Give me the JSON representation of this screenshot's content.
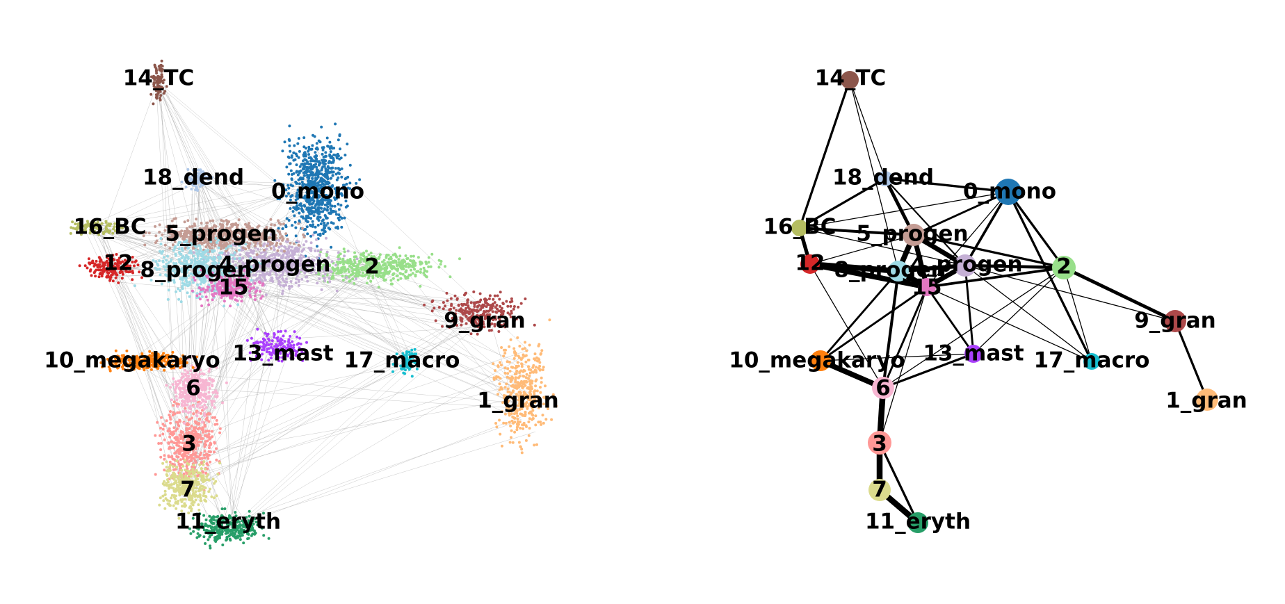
{
  "left_panel": {
    "title": "",
    "clusters": [
      {
        "id": "0_mono",
        "label": "0_mono",
        "color": "#1f77b4"
      },
      {
        "id": "1_gran",
        "label": "1_gran",
        "color": "#ffbb78"
      },
      {
        "id": "2",
        "label": "2",
        "color": "#98df8a"
      },
      {
        "id": "3",
        "label": "3",
        "color": "#ff9896"
      },
      {
        "id": "4_progen",
        "label": "4_progen",
        "color": "#c5b0d5"
      },
      {
        "id": "5_progen",
        "label": "5_progen",
        "color": "#c49c94"
      },
      {
        "id": "6",
        "label": "6",
        "color": "#f7b6d2"
      },
      {
        "id": "7",
        "label": "7",
        "color": "#dbdb8d"
      },
      {
        "id": "8_progen",
        "label": "8_progen",
        "color": "#9edae5"
      },
      {
        "id": "9_gran",
        "label": "9_gran",
        "color": "#ad494a"
      },
      {
        "id": "10_megakaryo",
        "label": "10_megakaryo",
        "color": "#ff7f0e"
      },
      {
        "id": "11_eryth",
        "label": "11_eryth",
        "color": "#279e68"
      },
      {
        "id": "12",
        "label": "12",
        "color": "#d62728"
      },
      {
        "id": "13_mast",
        "label": "13_mast",
        "color": "#aa40fc"
      },
      {
        "id": "14_TC",
        "label": "14_TC",
        "color": "#8c564b"
      },
      {
        "id": "15",
        "label": "15",
        "color": "#e377c2"
      },
      {
        "id": "16_BC",
        "label": "16_BC",
        "color": "#b5bd61"
      },
      {
        "id": "17_macro",
        "label": "17_macro",
        "color": "#17becf"
      },
      {
        "id": "18_dend",
        "label": "18_dend",
        "color": "#aec7e8"
      }
    ]
  },
  "right_panel": {
    "title": "",
    "nodes": [
      {
        "id": "0_mono",
        "label": "0_mono",
        "color": "#1f77b4",
        "size": 38
      },
      {
        "id": "1_gran",
        "label": "1_gran",
        "color": "#ffbb78",
        "size": 32
      },
      {
        "id": "2",
        "label": "2",
        "color": "#98df8a",
        "size": 34
      },
      {
        "id": "3",
        "label": "3",
        "color": "#ff9896",
        "size": 34
      },
      {
        "id": "4_progen",
        "label": "4_progen",
        "color": "#c5b0d5",
        "size": 32
      },
      {
        "id": "5_progen",
        "label": "5_progen",
        "color": "#c49c94",
        "size": 32
      },
      {
        "id": "6",
        "label": "6",
        "color": "#f7b6d2",
        "size": 32
      },
      {
        "id": "7",
        "label": "7",
        "color": "#dbdb8d",
        "size": 32
      },
      {
        "id": "8_progen",
        "label": "8_progen",
        "color": "#9edae5",
        "size": 30
      },
      {
        "id": "9_gran",
        "label": "9_gran",
        "color": "#ad494a",
        "size": 32
      },
      {
        "id": "10_megakaryo",
        "label": "10_megakaryo",
        "color": "#ff7f0e",
        "size": 30
      },
      {
        "id": "11_eryth",
        "label": "11_eryth",
        "color": "#279e68",
        "size": 30
      },
      {
        "id": "12",
        "label": "12",
        "color": "#d62728",
        "size": 28
      },
      {
        "id": "13_mast",
        "label": "13_mast",
        "color": "#aa40fc",
        "size": 26
      },
      {
        "id": "14_TC",
        "label": "14_TC",
        "color": "#8c564b",
        "size": 26
      },
      {
        "id": "15",
        "label": "15",
        "color": "#e377c2",
        "size": 26
      },
      {
        "id": "16_BC",
        "label": "16_BC",
        "color": "#b5bd61",
        "size": 24
      },
      {
        "id": "17_macro",
        "label": "17_macro",
        "color": "#17becf",
        "size": 24
      },
      {
        "id": "18_dend",
        "label": "18_dend",
        "color": "#aec7e8",
        "size": 22
      }
    ],
    "edges": [
      {
        "from": "14_TC",
        "to": "16_BC",
        "weight": 0.35
      },
      {
        "from": "14_TC",
        "to": "18_dend",
        "weight": 0.1
      },
      {
        "from": "14_TC",
        "to": "8_progen",
        "weight": 0.1
      },
      {
        "from": "16_BC",
        "to": "12",
        "weight": 0.6
      },
      {
        "from": "16_BC",
        "to": "5_progen",
        "weight": 0.45
      },
      {
        "from": "16_BC",
        "to": "18_dend",
        "weight": 0.35
      },
      {
        "from": "16_BC",
        "to": "4_progen",
        "weight": 0.1
      },
      {
        "from": "12",
        "to": "8_progen",
        "weight": 0.95
      },
      {
        "from": "12",
        "to": "15",
        "weight": 0.9
      },
      {
        "from": "12",
        "to": "5_progen",
        "weight": 0.1
      },
      {
        "from": "12",
        "to": "6",
        "weight": 0.1
      },
      {
        "from": "18_dend",
        "to": "0_mono",
        "weight": 0.35
      },
      {
        "from": "18_dend",
        "to": "5_progen",
        "weight": 0.55
      },
      {
        "from": "18_dend",
        "to": "4_progen",
        "weight": 0.2
      },
      {
        "from": "0_mono",
        "to": "4_progen",
        "weight": 0.4
      },
      {
        "from": "0_mono",
        "to": "5_progen",
        "weight": 0.3
      },
      {
        "from": "0_mono",
        "to": "2",
        "weight": 0.35
      },
      {
        "from": "0_mono",
        "to": "17_macro",
        "weight": 0.35
      },
      {
        "from": "0_mono",
        "to": "15",
        "weight": 0.1
      },
      {
        "from": "0_mono",
        "to": "16_BC",
        "weight": 0.1
      },
      {
        "from": "5_progen",
        "to": "4_progen",
        "weight": 0.8
      },
      {
        "from": "5_progen",
        "to": "8_progen",
        "weight": 0.9
      },
      {
        "from": "5_progen",
        "to": "15",
        "weight": 0.8
      },
      {
        "from": "5_progen",
        "to": "2",
        "weight": 0.35
      },
      {
        "from": "4_progen",
        "to": "15",
        "weight": 0.8
      },
      {
        "from": "4_progen",
        "to": "8_progen",
        "weight": 0.7
      },
      {
        "from": "4_progen",
        "to": "2",
        "weight": 0.5
      },
      {
        "from": "4_progen",
        "to": "13_mast",
        "weight": 0.3
      },
      {
        "from": "4_progen",
        "to": "17_macro",
        "weight": 0.1
      },
      {
        "from": "8_progen",
        "to": "15",
        "weight": 0.9
      },
      {
        "from": "15",
        "to": "2",
        "weight": 0.4
      },
      {
        "from": "8_progen",
        "to": "6",
        "weight": 0.45
      },
      {
        "from": "8_progen",
        "to": "10_megakaryo",
        "weight": 0.3
      },
      {
        "from": "15",
        "to": "6",
        "weight": 0.3
      },
      {
        "from": "15",
        "to": "10_megakaryo",
        "weight": 0.3
      },
      {
        "from": "15",
        "to": "13_mast",
        "weight": 0.3
      },
      {
        "from": "15",
        "to": "3",
        "weight": 0.1
      },
      {
        "from": "15",
        "to": "17_macro",
        "weight": 0.1
      },
      {
        "from": "2",
        "to": "9_gran",
        "weight": 0.55
      },
      {
        "from": "2",
        "to": "13_mast",
        "weight": 0.1
      },
      {
        "from": "2",
        "to": "6",
        "weight": 0.1
      },
      {
        "from": "2",
        "to": "17_macro",
        "weight": 0.1
      },
      {
        "from": "4_progen",
        "to": "9_gran",
        "weight": 0.1
      },
      {
        "from": "9_gran",
        "to": "1_gran",
        "weight": 0.35
      },
      {
        "from": "10_megakaryo",
        "to": "6",
        "weight": 0.9
      },
      {
        "from": "10_megakaryo",
        "to": "13_mast",
        "weight": 0.1
      },
      {
        "from": "6",
        "to": "13_mast",
        "weight": 0.35
      },
      {
        "from": "6",
        "to": "3",
        "weight": 1.0
      },
      {
        "from": "3",
        "to": "7",
        "weight": 1.0
      },
      {
        "from": "3",
        "to": "11_eryth",
        "weight": 0.35
      },
      {
        "from": "7",
        "to": "11_eryth",
        "weight": 1.0
      }
    ]
  }
}
